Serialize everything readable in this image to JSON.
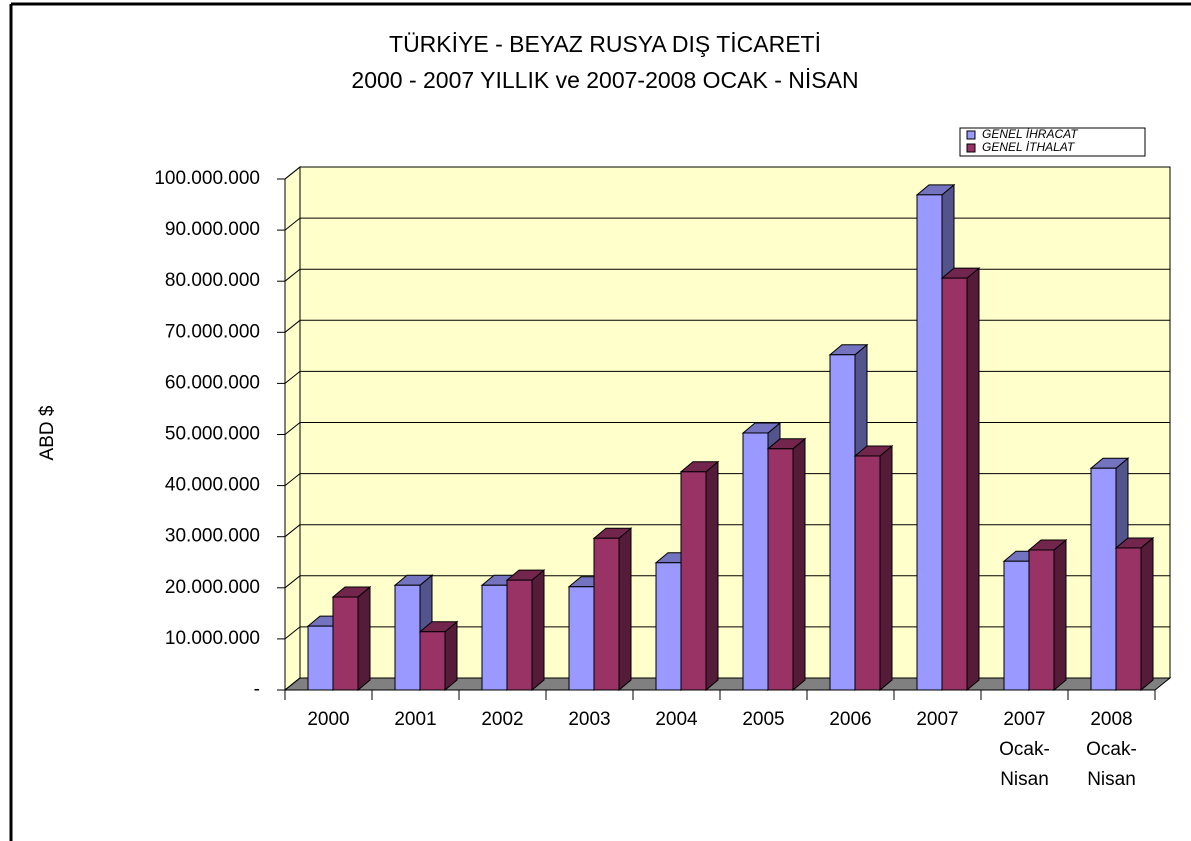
{
  "chart_data": {
    "type": "bar3d",
    "title": "TÜRKİYE - BEYAZ RUSYA DIŞ TİCARETİ",
    "subtitle": "2000 - 2007 YILLIK ve 2007-2008 OCAK - NİSAN",
    "y_label": "ABD $",
    "categories": [
      "2000",
      "2001",
      "2002",
      "2003",
      "2004",
      "2005",
      "2006",
      "2007",
      "2007\nOcak-\nNisan",
      "2008\nOcak-\nNisan"
    ],
    "series": [
      {
        "name": "GENEL İHRACAT",
        "color": "#9999ff",
        "values": [
          12500000,
          20500000,
          20500000,
          20200000,
          24900000,
          50300000,
          65600000,
          96900000,
          25200000,
          43400000
        ]
      },
      {
        "name": "GENEL İTHALAT",
        "color": "#993366",
        "values": [
          18200000,
          11400000,
          21500000,
          29700000,
          42700000,
          47200000,
          45800000,
          80600000,
          27400000,
          27800000
        ]
      }
    ],
    "ylim": [
      0,
      100000000
    ],
    "yticks": [
      {
        "value": 0,
        "label": "-"
      },
      {
        "value": 10000000,
        "label": "10.000.000"
      },
      {
        "value": 20000000,
        "label": "20.000.000"
      },
      {
        "value": 30000000,
        "label": "30.000.000"
      },
      {
        "value": 40000000,
        "label": "40.000.000"
      },
      {
        "value": 50000000,
        "label": "50.000.000"
      },
      {
        "value": 60000000,
        "label": "60.000.000"
      },
      {
        "value": 70000000,
        "label": "70.000.000"
      },
      {
        "value": 80000000,
        "label": "80.000.000"
      },
      {
        "value": 90000000,
        "label": "90.000.000"
      },
      {
        "value": 100000000,
        "label": "100.000.000"
      }
    ],
    "grid": true,
    "legend": "top-right"
  }
}
